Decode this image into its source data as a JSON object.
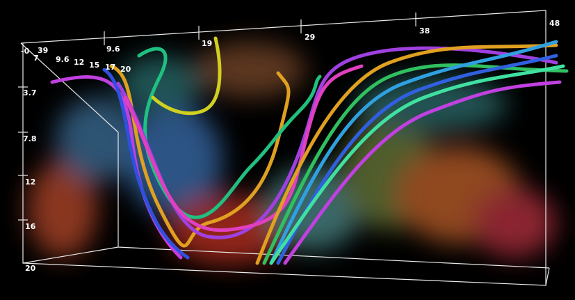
{
  "axis_labels": {
    "top": [
      "9.6",
      "19",
      "29",
      "38",
      "48"
    ],
    "left": [
      "-0",
      "3.7",
      "7.8",
      "12",
      "16",
      "20"
    ],
    "front": [
      "39",
      "7",
      "9.6",
      "12",
      "15",
      "17",
      "20"
    ]
  }
}
